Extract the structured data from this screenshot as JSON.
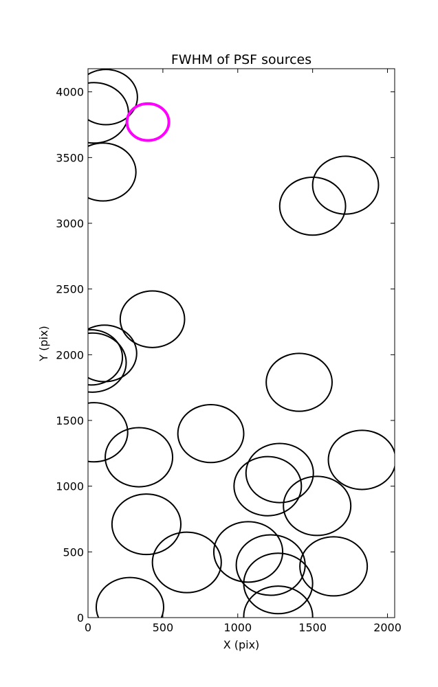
{
  "chart_data": {
    "type": "scatter",
    "title": "FWHM of PSF sources",
    "xlabel": "X (pix)",
    "ylabel": "Y (pix)",
    "xlim": [
      0,
      2048
    ],
    "ylim": [
      0,
      4176
    ],
    "xticks": [
      0,
      500,
      1000,
      1500,
      2000
    ],
    "yticks": [
      0,
      500,
      1000,
      1500,
      2000,
      2500,
      3000,
      3500,
      4000
    ],
    "grid": false,
    "highlight_color": "#ff00ff",
    "default_color": "#000000",
    "points": [
      {
        "x": 120,
        "y": 3960,
        "r": 210,
        "highlight": false
      },
      {
        "x": 40,
        "y": 3840,
        "r": 230,
        "highlight": false
      },
      {
        "x": 100,
        "y": 3390,
        "r": 220,
        "highlight": false
      },
      {
        "x": 400,
        "y": 3770,
        "r": 140,
        "highlight": true
      },
      {
        "x": 1720,
        "y": 3290,
        "r": 220,
        "highlight": false
      },
      {
        "x": 1500,
        "y": 3130,
        "r": 220,
        "highlight": false
      },
      {
        "x": 430,
        "y": 2270,
        "r": 215,
        "highlight": false
      },
      {
        "x": 110,
        "y": 2010,
        "r": 215,
        "highlight": false
      },
      {
        "x": 30,
        "y": 1940,
        "r": 225,
        "highlight": false
      },
      {
        "x": 20,
        "y": 1980,
        "r": 210,
        "highlight": false
      },
      {
        "x": 1410,
        "y": 1790,
        "r": 220,
        "highlight": false
      },
      {
        "x": 40,
        "y": 1410,
        "r": 225,
        "highlight": false
      },
      {
        "x": 820,
        "y": 1400,
        "r": 220,
        "highlight": false
      },
      {
        "x": 340,
        "y": 1220,
        "r": 225,
        "highlight": false
      },
      {
        "x": 1830,
        "y": 1200,
        "r": 225,
        "highlight": false
      },
      {
        "x": 1280,
        "y": 1100,
        "r": 225,
        "highlight": false
      },
      {
        "x": 1200,
        "y": 1000,
        "r": 225,
        "highlight": false
      },
      {
        "x": 1530,
        "y": 850,
        "r": 225,
        "highlight": false
      },
      {
        "x": 390,
        "y": 710,
        "r": 230,
        "highlight": false
      },
      {
        "x": 1070,
        "y": 500,
        "r": 230,
        "highlight": false
      },
      {
        "x": 660,
        "y": 420,
        "r": 230,
        "highlight": false
      },
      {
        "x": 1640,
        "y": 390,
        "r": 225,
        "highlight": false
      },
      {
        "x": 1220,
        "y": 400,
        "r": 230,
        "highlight": false
      },
      {
        "x": 1270,
        "y": 260,
        "r": 230,
        "highlight": false
      },
      {
        "x": 1270,
        "y": 10,
        "r": 230,
        "highlight": false
      },
      {
        "x": 280,
        "y": 80,
        "r": 225,
        "highlight": false
      }
    ]
  }
}
